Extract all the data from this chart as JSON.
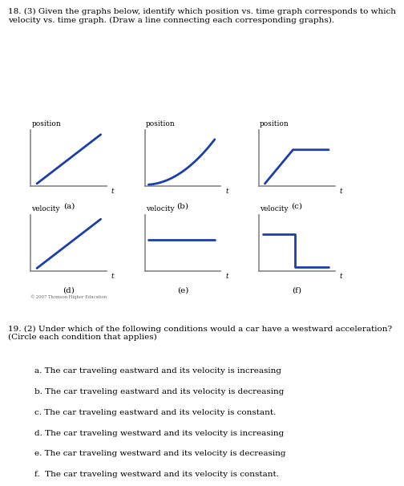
{
  "title18": "18. (3) Given the graphs below, identify which position vs. time graph corresponds to which\nvelocity vs. time graph. (Draw a line connecting each corresponding graphs).",
  "title19": "19. (2) Under which of the following conditions would a car have a westward acceleration?\n(Circle each condition that applies)",
  "options": [
    "a. The car traveling eastward and its velocity is increasing",
    "b. The car traveling eastward and its velocity is decreasing",
    "c. The car traveling eastward and its velocity is constant.",
    "d. The car traveling westward and its velocity is increasing",
    "e. The car traveling westward and its velocity is decreasing",
    "f.  The car traveling westward and its velocity is constant."
  ],
  "line_color": "#1a3faa",
  "axis_color": "#888888",
  "label_color": "#000000",
  "bg_color": "#ffffff",
  "copyright": "© 2007 Thomson Higher Education"
}
